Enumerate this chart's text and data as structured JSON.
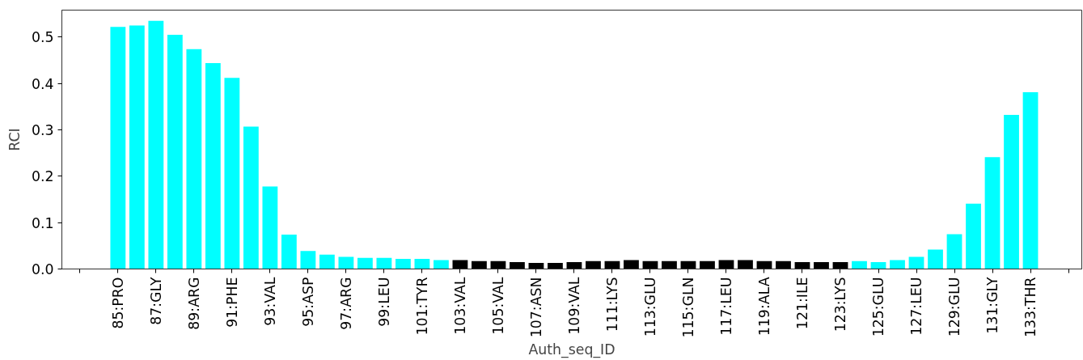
{
  "chart_data": {
    "type": "bar",
    "xlabel": "Auth_seq_ID",
    "ylabel": "RCI",
    "x": [
      85,
      86,
      87,
      88,
      89,
      90,
      91,
      92,
      93,
      94,
      95,
      96,
      97,
      98,
      99,
      100,
      101,
      102,
      103,
      104,
      105,
      106,
      107,
      108,
      109,
      110,
      111,
      112,
      113,
      114,
      115,
      116,
      117,
      118,
      119,
      120,
      121,
      122,
      123,
      124,
      125,
      126,
      127,
      128,
      129,
      130,
      131,
      132,
      133
    ],
    "values": [
      0.522,
      0.525,
      0.535,
      0.505,
      0.474,
      0.444,
      0.412,
      0.307,
      0.178,
      0.074,
      0.039,
      0.031,
      0.026,
      0.024,
      0.024,
      0.022,
      0.022,
      0.019,
      0.019,
      0.017,
      0.017,
      0.015,
      0.013,
      0.013,
      0.015,
      0.017,
      0.017,
      0.019,
      0.017,
      0.017,
      0.017,
      0.017,
      0.019,
      0.019,
      0.017,
      0.017,
      0.015,
      0.015,
      0.015,
      0.017,
      0.015,
      0.019,
      0.026,
      0.042,
      0.075,
      0.141,
      0.241,
      0.332,
      0.381
    ],
    "colors": [
      "#00ffff",
      "#00ffff",
      "#00ffff",
      "#00ffff",
      "#00ffff",
      "#00ffff",
      "#00ffff",
      "#00ffff",
      "#00ffff",
      "#00ffff",
      "#00ffff",
      "#00ffff",
      "#00ffff",
      "#00ffff",
      "#00ffff",
      "#00ffff",
      "#00ffff",
      "#00ffff",
      "#000000",
      "#000000",
      "#000000",
      "#000000",
      "#000000",
      "#000000",
      "#000000",
      "#000000",
      "#000000",
      "#000000",
      "#000000",
      "#000000",
      "#000000",
      "#000000",
      "#000000",
      "#000000",
      "#000000",
      "#000000",
      "#000000",
      "#000000",
      "#000000",
      "#00ffff",
      "#00ffff",
      "#00ffff",
      "#00ffff",
      "#00ffff",
      "#00ffff",
      "#00ffff",
      "#00ffff",
      "#00ffff",
      "#00ffff"
    ],
    "xlim": [
      82.05,
      135.7
    ],
    "xticks": [
      {
        "value": 83,
        "label": null
      },
      {
        "value": 85,
        "label": "85:PRO"
      },
      {
        "value": 87,
        "label": "87:GLY"
      },
      {
        "value": 89,
        "label": "89:ARG"
      },
      {
        "value": 91,
        "label": "91:PHE"
      },
      {
        "value": 93,
        "label": "93:VAL"
      },
      {
        "value": 95,
        "label": "95:ASP"
      },
      {
        "value": 97,
        "label": "97:ARG"
      },
      {
        "value": 99,
        "label": "99:LEU"
      },
      {
        "value": 101,
        "label": "101:TYR"
      },
      {
        "value": 103,
        "label": "103:VAL"
      },
      {
        "value": 105,
        "label": "105:VAL"
      },
      {
        "value": 107,
        "label": "107:ASN"
      },
      {
        "value": 109,
        "label": "109:VAL"
      },
      {
        "value": 111,
        "label": "111:LYS"
      },
      {
        "value": 113,
        "label": "113:GLU"
      },
      {
        "value": 115,
        "label": "115:GLN"
      },
      {
        "value": 117,
        "label": "117:LEU"
      },
      {
        "value": 119,
        "label": "119:ALA"
      },
      {
        "value": 121,
        "label": "121:ILE"
      },
      {
        "value": 123,
        "label": "123:LYS"
      },
      {
        "value": 125,
        "label": "125:GLU"
      },
      {
        "value": 127,
        "label": "127:LEU"
      },
      {
        "value": 129,
        "label": "129:GLU"
      },
      {
        "value": 131,
        "label": "131:GLY"
      },
      {
        "value": 133,
        "label": "133:THR"
      },
      {
        "value": 135,
        "label": null
      }
    ],
    "ylim": [
      0,
      0.558
    ],
    "yticks": [
      {
        "value": 0,
        "label": "0.0"
      },
      0.1,
      0.2,
      0.3,
      0.4,
      0.5
    ],
    "grid": false
  }
}
